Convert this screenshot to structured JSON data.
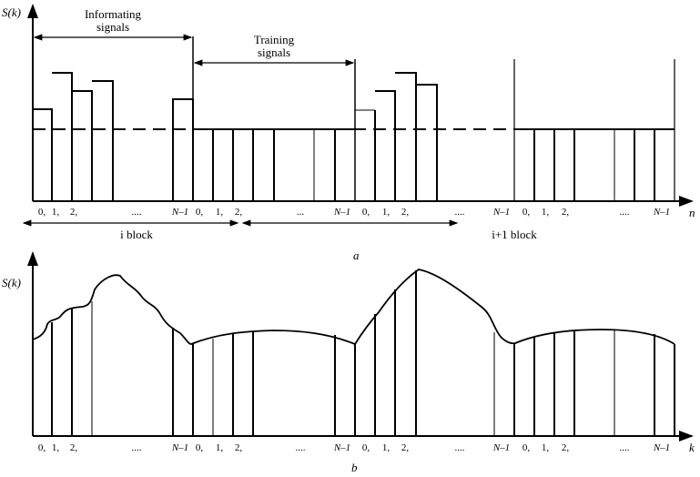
{
  "panel_a": {
    "y_label": "S(k)",
    "x_label": "n",
    "caption": "a",
    "info_label_1": "Informating",
    "info_label_2": "signals",
    "train_label_1": "Training",
    "train_label_2": "signals",
    "block_i": "i block",
    "block_i1": "i+1 block",
    "ticks": [
      "0,",
      "1,",
      "2,",
      "....",
      "N–1",
      "0,",
      "1,",
      "2,",
      "...",
      "N–1",
      "0,",
      "1,",
      "2,",
      "....",
      "N–1",
      "0,",
      "1,",
      "2,",
      "....",
      "N–1"
    ]
  },
  "panel_b": {
    "y_label": "S(k)",
    "x_label": "k",
    "caption": "b",
    "ticks": [
      "0,",
      "1,",
      "2,",
      "....",
      "N–1",
      "0,",
      "1,",
      "2,",
      "....",
      "N–1",
      "0,",
      "1,",
      "2,",
      "....",
      "N–1",
      "0,",
      "1,",
      "2,",
      "....",
      "N–1"
    ]
  }
}
